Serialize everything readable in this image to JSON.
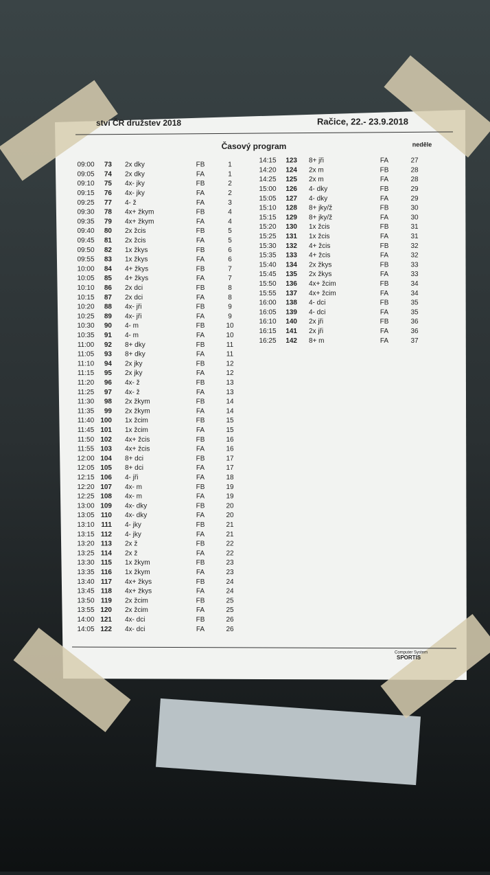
{
  "header": {
    "event": "ství ČR družstev 2018",
    "place_date": "Račice, 22.- 23.9.2018",
    "title": "Časový program",
    "day": "neděle"
  },
  "table_left": {
    "rows": [
      [
        "09:00",
        "73",
        "2x dky",
        "FB",
        "1"
      ],
      [
        "09:05",
        "74",
        "2x dky",
        "FA",
        "1"
      ],
      [
        "09:10",
        "75",
        "4x- jky",
        "FB",
        "2"
      ],
      [
        "09:15",
        "76",
        "4x- jky",
        "FA",
        "2"
      ],
      [
        "09:25",
        "77",
        "4- ž",
        "FA",
        "3"
      ],
      [
        "09:30",
        "78",
        "4x+ žkym",
        "FB",
        "4"
      ],
      [
        "09:35",
        "79",
        "4x+ žkym",
        "FA",
        "4"
      ],
      [
        "09:40",
        "80",
        "2x žcis",
        "FB",
        "5"
      ],
      [
        "09:45",
        "81",
        "2x žcis",
        "FA",
        "5"
      ],
      [
        "09:50",
        "82",
        "1x žkys",
        "FB",
        "6"
      ],
      [
        "09:55",
        "83",
        "1x žkys",
        "FA",
        "6"
      ],
      [
        "10:00",
        "84",
        "4+ žkys",
        "FB",
        "7"
      ],
      [
        "10:05",
        "85",
        "4+ žkys",
        "FA",
        "7"
      ],
      [
        "10:10",
        "86",
        "2x dci",
        "FB",
        "8"
      ],
      [
        "10:15",
        "87",
        "2x dci",
        "FA",
        "8"
      ],
      [
        "10:20",
        "88",
        "4x- jři",
        "FB",
        "9"
      ],
      [
        "10:25",
        "89",
        "4x- jři",
        "FA",
        "9"
      ],
      [
        "10:30",
        "90",
        "4- m",
        "FB",
        "10"
      ],
      [
        "10:35",
        "91",
        "4- m",
        "FA",
        "10"
      ],
      [
        "11:00",
        "92",
        "8+ dky",
        "FB",
        "11"
      ],
      [
        "11:05",
        "93",
        "8+ dky",
        "FA",
        "11"
      ],
      [
        "11:10",
        "94",
        "2x jky",
        "FB",
        "12"
      ],
      [
        "11:15",
        "95",
        "2x jky",
        "FA",
        "12"
      ],
      [
        "11:20",
        "96",
        "4x- ž",
        "FB",
        "13"
      ],
      [
        "11:25",
        "97",
        "4x- ž",
        "FA",
        "13"
      ],
      [
        "11:30",
        "98",
        "2x žkym",
        "FB",
        "14"
      ],
      [
        "11:35",
        "99",
        "2x žkym",
        "FA",
        "14"
      ],
      [
        "11:40",
        "100",
        "1x žcim",
        "FB",
        "15"
      ],
      [
        "11:45",
        "101",
        "1x žcim",
        "FA",
        "15"
      ],
      [
        "11:50",
        "102",
        "4x+ žcis",
        "FB",
        "16"
      ],
      [
        "11:55",
        "103",
        "4x+ žcis",
        "FA",
        "16"
      ],
      [
        "12:00",
        "104",
        "8+ dci",
        "FB",
        "17"
      ],
      [
        "12:05",
        "105",
        "8+ dci",
        "FA",
        "17"
      ],
      [
        "12:15",
        "106",
        "4- jři",
        "FA",
        "18"
      ],
      [
        "12:20",
        "107",
        "4x- m",
        "FB",
        "19"
      ],
      [
        "12:25",
        "108",
        "4x- m",
        "FA",
        "19"
      ],
      [
        "13:00",
        "109",
        "4x- dky",
        "FB",
        "20"
      ],
      [
        "13:05",
        "110",
        "4x- dky",
        "FA",
        "20"
      ],
      [
        "13:10",
        "111",
        "4- jky",
        "FB",
        "21"
      ],
      [
        "13:15",
        "112",
        "4- jky",
        "FA",
        "21"
      ],
      [
        "13:20",
        "113",
        "2x ž",
        "FB",
        "22"
      ],
      [
        "13:25",
        "114",
        "2x ž",
        "FA",
        "22"
      ],
      [
        "13:30",
        "115",
        "1x žkym",
        "FB",
        "23"
      ],
      [
        "13:35",
        "116",
        "1x žkym",
        "FA",
        "23"
      ],
      [
        "13:40",
        "117",
        "4x+ žkys",
        "FB",
        "24"
      ],
      [
        "13:45",
        "118",
        "4x+ žkys",
        "FA",
        "24"
      ],
      [
        "13:50",
        "119",
        "2x žcim",
        "FB",
        "25"
      ],
      [
        "13:55",
        "120",
        "2x žcim",
        "FA",
        "25"
      ],
      [
        "14:00",
        "121",
        "4x- dci",
        "FB",
        "26"
      ],
      [
        "14:05",
        "122",
        "4x- dci",
        "FA",
        "26"
      ]
    ]
  },
  "table_right": {
    "rows": [
      [
        "14:15",
        "123",
        "8+ jři",
        "FA",
        "27"
      ],
      [
        "14:20",
        "124",
        "2x m",
        "FB",
        "28"
      ],
      [
        "14:25",
        "125",
        "2x m",
        "FA",
        "28"
      ],
      [
        "15:00",
        "126",
        "4- dky",
        "FB",
        "29"
      ],
      [
        "15:05",
        "127",
        "4- dky",
        "FA",
        "29"
      ],
      [
        "15:10",
        "128",
        "8+ jky/ž",
        "FB",
        "30"
      ],
      [
        "15:15",
        "129",
        "8+ jky/ž",
        "FA",
        "30"
      ],
      [
        "15:20",
        "130",
        "1x žcis",
        "FB",
        "31"
      ],
      [
        "15:25",
        "131",
        "1x žcis",
        "FA",
        "31"
      ],
      [
        "15:30",
        "132",
        "4+ žcis",
        "FB",
        "32"
      ],
      [
        "15:35",
        "133",
        "4+ žcis",
        "FA",
        "32"
      ],
      [
        "15:40",
        "134",
        "2x žkys",
        "FB",
        "33"
      ],
      [
        "15:45",
        "135",
        "2x žkys",
        "FA",
        "33"
      ],
      [
        "15:50",
        "136",
        "4x+ žcim",
        "FB",
        "34"
      ],
      [
        "15:55",
        "137",
        "4x+ žcim",
        "FA",
        "34"
      ],
      [
        "16:00",
        "138",
        "4- dci",
        "FB",
        "35"
      ],
      [
        "16:05",
        "139",
        "4- dci",
        "FA",
        "35"
      ],
      [
        "16:10",
        "140",
        "2x jři",
        "FB",
        "36"
      ],
      [
        "16:15",
        "141",
        "2x jři",
        "FA",
        "36"
      ],
      [
        "16:25",
        "142",
        "8+ m",
        "FA",
        "37"
      ]
    ]
  },
  "footer": {
    "system": "Computer System",
    "brand": "SPORTIS"
  }
}
